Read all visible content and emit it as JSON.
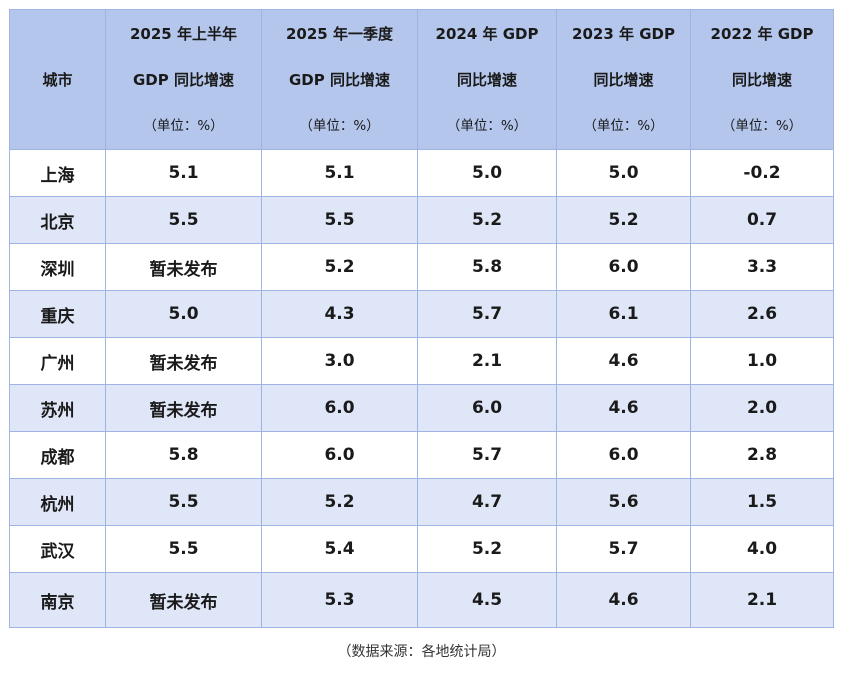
{
  "table": {
    "columns": [
      {
        "line1": "城市",
        "line2": "",
        "line3": ""
      },
      {
        "line1": "2025 年上半年",
        "line2": "GDP 同比增速",
        "line3": "（单位：%）"
      },
      {
        "line1": "2025 年一季度",
        "line2": "GDP 同比增速",
        "line3": "（单位：%）"
      },
      {
        "line1": "2024 年 GDP",
        "line2": "同比增速",
        "line3": "（单位：%）"
      },
      {
        "line1": "2023 年 GDP",
        "line2": "同比增速",
        "line3": "（单位：%）"
      },
      {
        "line1": "2022 年 GDP",
        "line2": "同比增速",
        "line3": "（单位：%）"
      }
    ],
    "rows": [
      [
        "上海",
        "5.1",
        "5.1",
        "5.0",
        "5.0",
        "-0.2"
      ],
      [
        "北京",
        "5.5",
        "5.5",
        "5.2",
        "5.2",
        "0.7"
      ],
      [
        "深圳",
        "暂未发布",
        "5.2",
        "5.8",
        "6.0",
        "3.3"
      ],
      [
        "重庆",
        "5.0",
        "4.3",
        "5.7",
        "6.1",
        "2.6"
      ],
      [
        "广州",
        "暂未发布",
        "3.0",
        "2.1",
        "4.6",
        "1.0"
      ],
      [
        "苏州",
        "暂未发布",
        "6.0",
        "6.0",
        "4.6",
        "2.0"
      ],
      [
        "成都",
        "5.8",
        "6.0",
        "5.7",
        "6.0",
        "2.8"
      ],
      [
        "杭州",
        "5.5",
        "5.2",
        "4.7",
        "5.6",
        "1.5"
      ],
      [
        "武汉",
        "5.5",
        "5.4",
        "5.2",
        "5.7",
        "4.0"
      ],
      [
        "南京",
        "暂未发布",
        "5.3",
        "4.5",
        "4.6",
        "2.1"
      ]
    ]
  },
  "source_note": "（数据来源：各地统计局）",
  "colors": {
    "header_bg": "#b4c6ec",
    "row_alt_bg": "#dfe6f7",
    "border": "#9fb4e3"
  }
}
